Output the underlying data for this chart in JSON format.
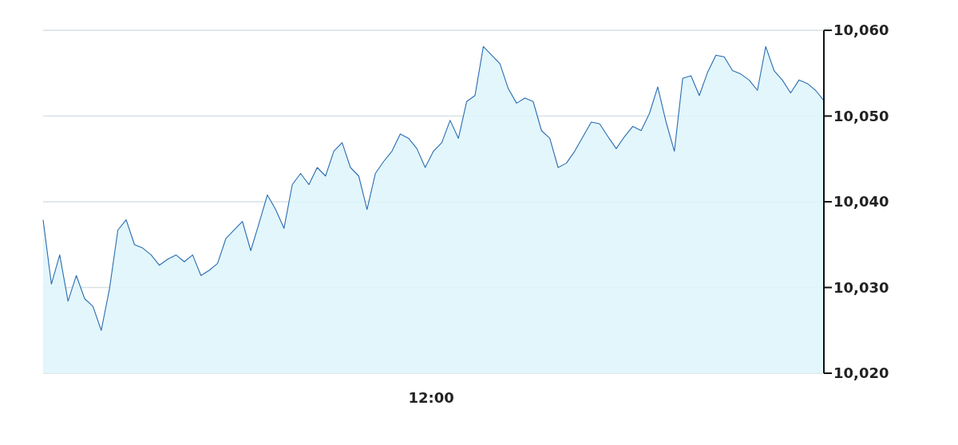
{
  "chart_data": {
    "type": "area",
    "categories": [
      null,
      null,
      null,
      null,
      null,
      null,
      null,
      null,
      null,
      null,
      null,
      null,
      null,
      null,
      null,
      null,
      null,
      null,
      null,
      null,
      null,
      null,
      null,
      null,
      null,
      null,
      null,
      null,
      null,
      null,
      null,
      null,
      null,
      null,
      null,
      null,
      null,
      null,
      null,
      null,
      null,
      null,
      null,
      null,
      null,
      null,
      null,
      null,
      null,
      null,
      null,
      null,
      null,
      null,
      null,
      null,
      null,
      null,
      null,
      null,
      null,
      null,
      null,
      null,
      null,
      null,
      null,
      null,
      null,
      null,
      null,
      null,
      null,
      null,
      null,
      null,
      null,
      null,
      null,
      null,
      null,
      null,
      null,
      null,
      null,
      null,
      null,
      null,
      null,
      null,
      null,
      null,
      null,
      null,
      null
    ],
    "series": [
      {
        "color": "#2a6cb0",
        "values": [
          10037.9,
          10030.4,
          10033.8,
          10028.4,
          10031.4,
          10028.7,
          10027.8,
          10025.0,
          10029.9,
          10036.7,
          10037.9,
          10035.0,
          10034.6,
          10033.8,
          10032.6,
          10033.3,
          10033.8,
          10033.0,
          10033.8,
          10031.4,
          10032.0,
          10032.8,
          10035.7,
          10036.7,
          10037.7,
          10034.3,
          10037.5,
          10040.8,
          10039.1,
          10036.9,
          10042.0,
          10043.3,
          10042.0,
          10044.0,
          10043.0,
          10045.9,
          10046.9,
          10044.0,
          10043.0,
          10039.1,
          10043.3,
          10044.7,
          10045.9,
          10047.9,
          10047.4,
          10046.2,
          10044.0,
          10045.9,
          10046.9,
          10049.5,
          10047.4,
          10051.7,
          10052.4,
          10058.1,
          10057.1,
          10056.1,
          10053.2,
          10051.5,
          10052.1,
          10051.7,
          10048.3,
          10047.4,
          10044.0,
          10044.5,
          10045.9,
          10047.6,
          10049.3,
          10049.1,
          10047.6,
          10046.2,
          10047.6,
          10048.8,
          10048.3,
          10050.3,
          10053.4,
          10049.3,
          10045.9,
          10054.4,
          10054.7,
          10052.4,
          10055.1,
          10057.1,
          10056.9,
          10055.3,
          10054.9,
          10054.2,
          10053.0,
          10058.1,
          10055.3,
          10054.2,
          10052.7,
          10054.2,
          10053.8,
          10053.0,
          10051.8
        ]
      }
    ],
    "annotations": [
      "12:00"
    ],
    "ylim": [
      10020,
      10060
    ],
    "yticks": [
      {
        "value": 10020,
        "label": "10,020"
      },
      {
        "value": 10030,
        "label": "10,030"
      },
      {
        "value": 10040,
        "label": "10,040"
      },
      {
        "value": 10050,
        "label": "10,050"
      },
      {
        "value": 10060,
        "label": "10,060"
      }
    ],
    "grid": "y",
    "marker": "none",
    "line_style": "solid"
  }
}
